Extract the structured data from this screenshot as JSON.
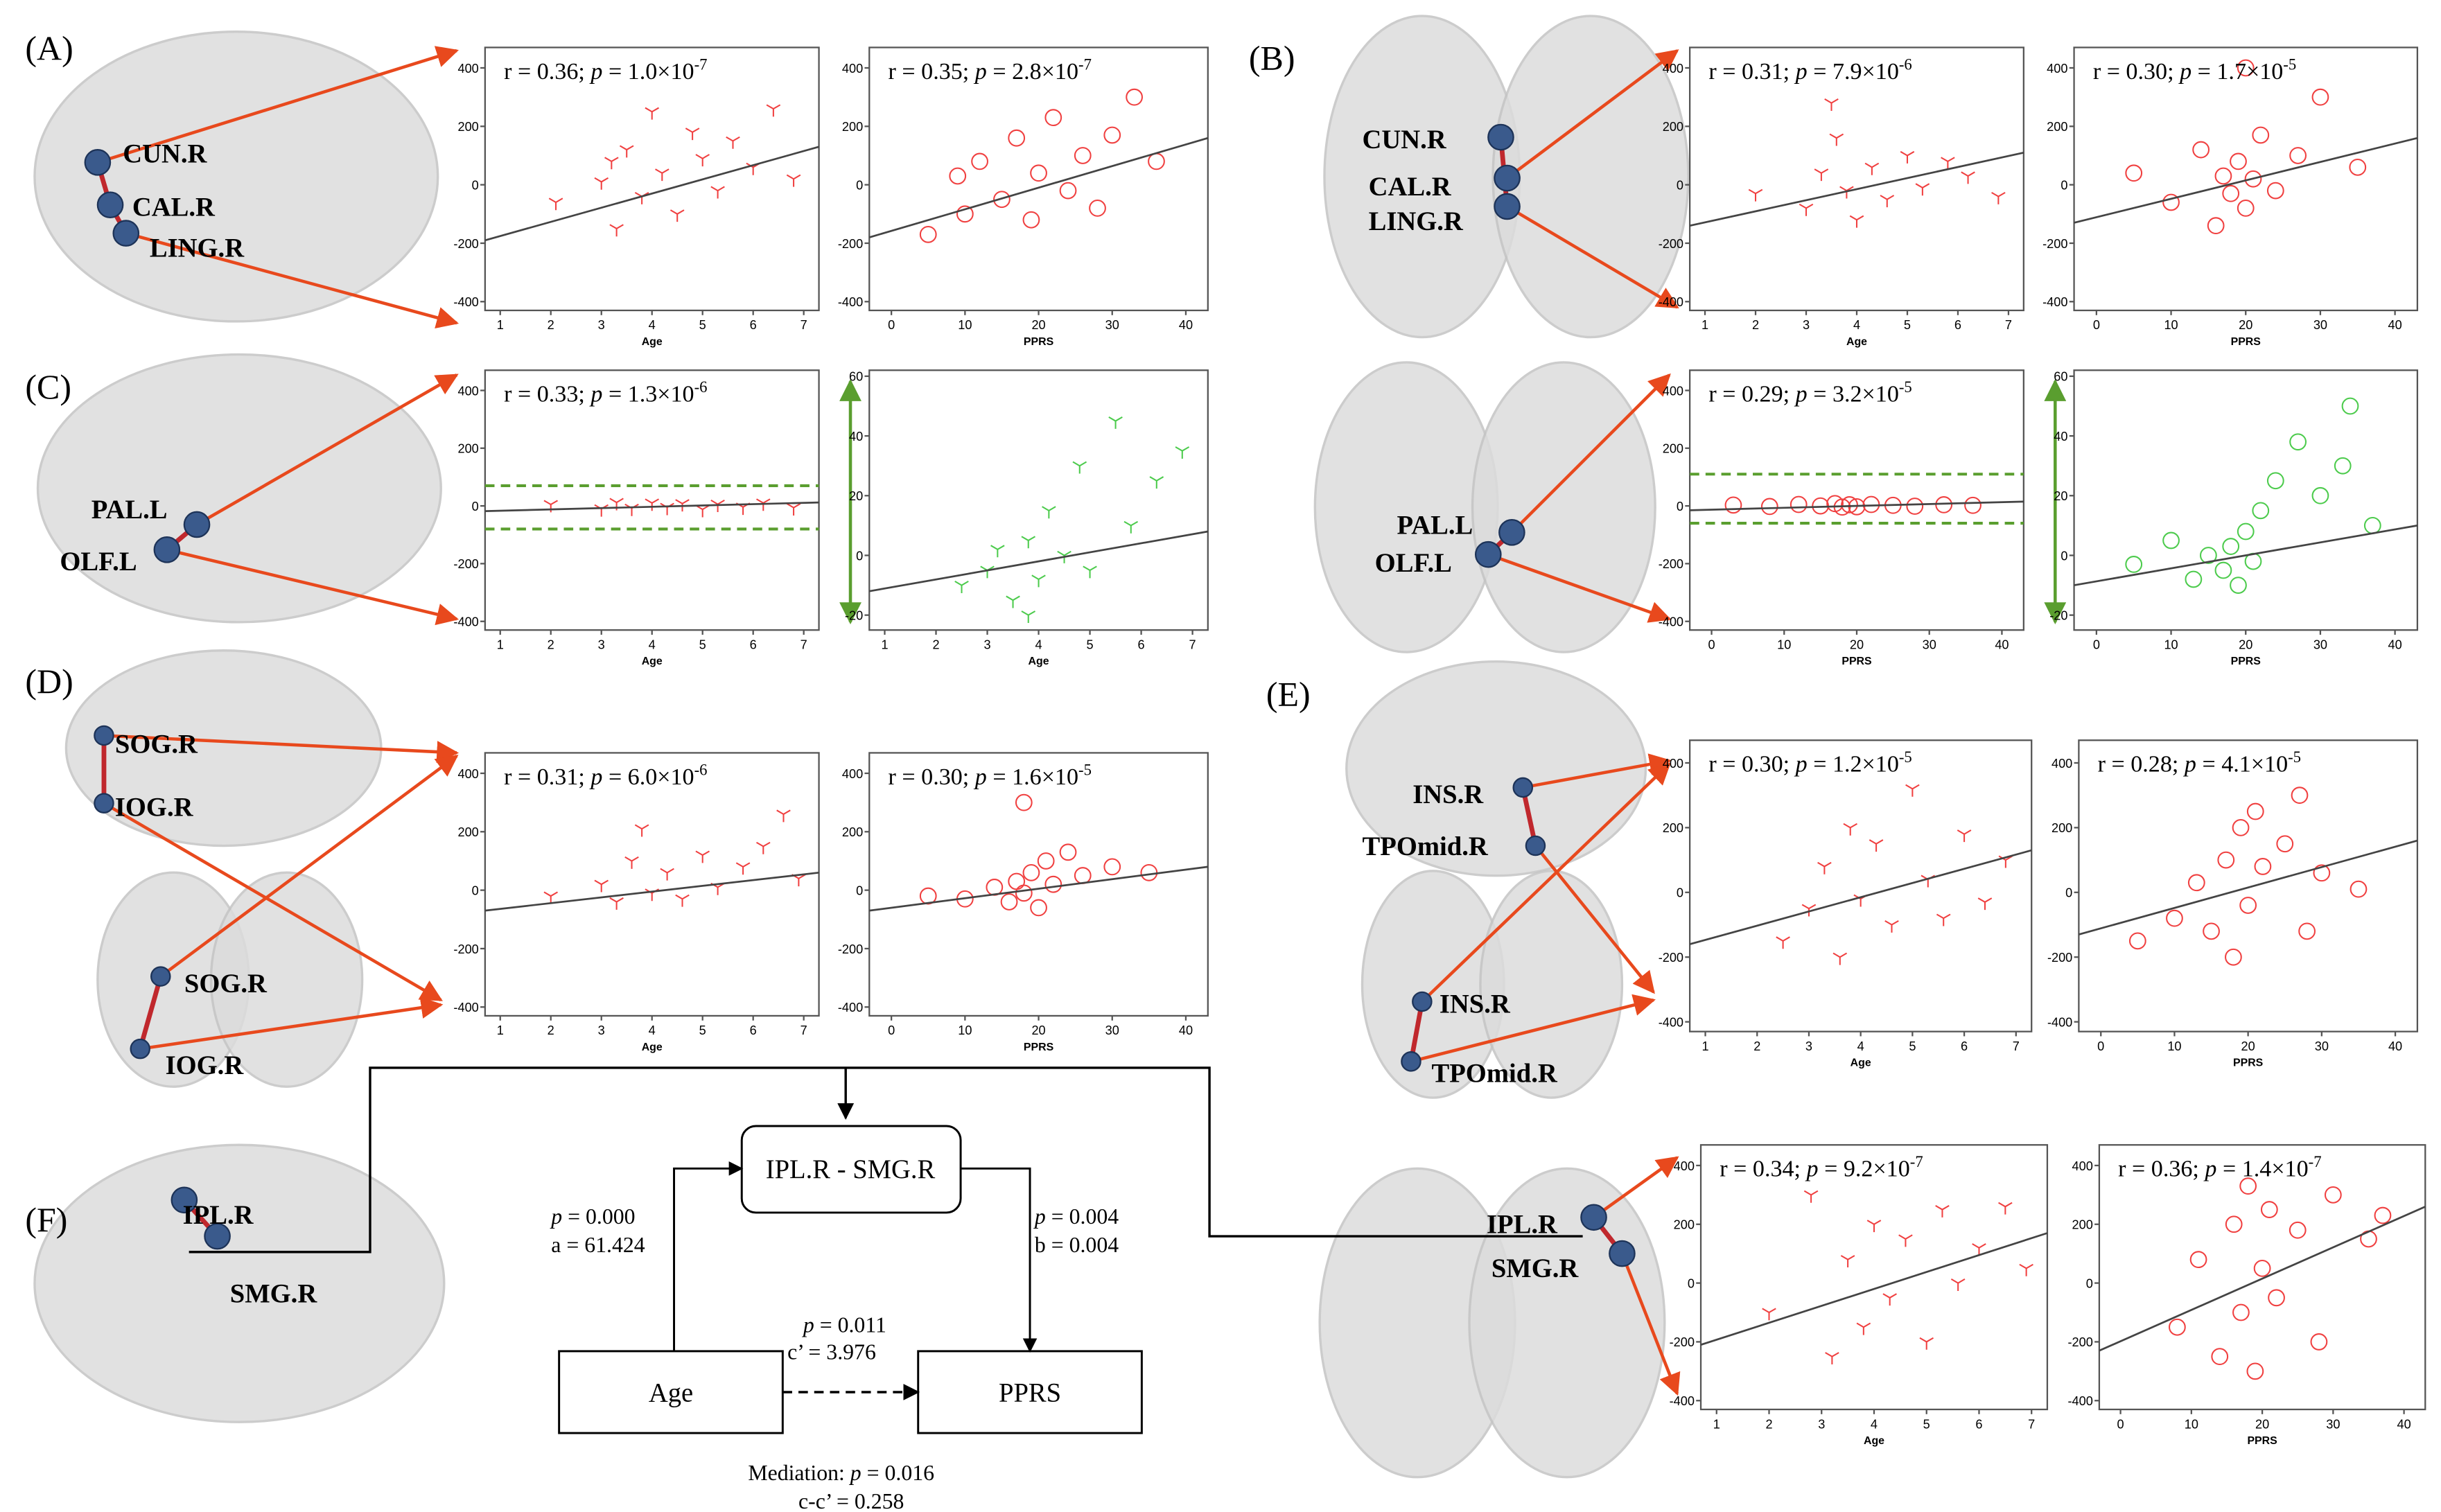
{
  "panels": [
    "(A)",
    "(B)",
    "(C)",
    "(D)",
    "(E)",
    "(F)"
  ],
  "regions": {
    "A": [
      "CUN.R",
      "CAL.R",
      "LING.R"
    ],
    "B": [
      "CUN.R",
      "CAL.R",
      "LING.R"
    ],
    "C": [
      "PAL.L",
      "OLF.L"
    ],
    "C2": [
      "PAL.L",
      "OLF.L"
    ],
    "D": [
      "SOG.R",
      "IOG.R",
      "SOG.R",
      "IOG.R"
    ],
    "E": [
      "INS.R",
      "TPOmid.R",
      "INS.R",
      "TPOmid.R"
    ],
    "F": [
      "IPL.R",
      "SMG.R"
    ],
    "F2": [
      "IPL.R",
      "SMG.R"
    ]
  },
  "mediation": {
    "mediator": "IPL.R - SMG.R",
    "x": "Age",
    "y": "PPRS",
    "a": {
      "sym": "p",
      "text": "= 0.000",
      "coef": "a = 61.424"
    },
    "b": {
      "sym": "p",
      "text": "= 0.004",
      "coef": "b = 0.004"
    },
    "c": {
      "sym": "p",
      "text": "= 0.011",
      "coef": "c’ = 3.976"
    },
    "total": {
      "lead": "Mediation:",
      "sym": "p",
      "text": "= 0.016",
      "coef": "c-c’ = 0.258"
    }
  },
  "plots": [
    {
      "xlabel": "Age",
      "xlim": [
        0.7,
        7.3
      ],
      "xticks": [
        1,
        2,
        3,
        4,
        5,
        6,
        7
      ],
      "ylim": [
        -430,
        470
      ],
      "yticks": [
        -400,
        -200,
        0,
        200,
        400
      ],
      "marker": "tri",
      "color": "#f04040",
      "annotation": {
        "r": "r = 0.36;",
        "p": "p",
        "rest": "= 1.0×10",
        "exp": "-7"
      },
      "points": [
        [
          2.1,
          -60
        ],
        [
          3,
          10
        ],
        [
          3.3,
          -150
        ],
        [
          3.5,
          120
        ],
        [
          3.8,
          -40
        ],
        [
          4,
          250
        ],
        [
          4.2,
          40
        ],
        [
          4.5,
          -100
        ],
        [
          4.8,
          180
        ],
        [
          5,
          90
        ],
        [
          5.3,
          -20
        ],
        [
          5.6,
          150
        ],
        [
          6,
          60
        ],
        [
          6.4,
          260
        ],
        [
          6.8,
          20
        ],
        [
          3.2,
          80
        ]
      ],
      "fit": [
        [
          0.7,
          -190
        ],
        [
          7.3,
          130
        ]
      ]
    },
    {
      "xlabel": "PPRS",
      "xlim": [
        -3,
        43
      ],
      "xticks": [
        0,
        10,
        20,
        30,
        40
      ],
      "ylim": [
        -430,
        470
      ],
      "yticks": [
        -400,
        -200,
        0,
        200,
        400
      ],
      "marker": "circle",
      "color": "#f04040",
      "annotation": {
        "r": "r = 0.35;",
        "p": "p",
        "rest": "= 2.8×10",
        "exp": "-7"
      },
      "points": [
        [
          5,
          -170
        ],
        [
          9,
          30
        ],
        [
          10,
          -100
        ],
        [
          12,
          80
        ],
        [
          15,
          -50
        ],
        [
          17,
          160
        ],
        [
          19,
          -120
        ],
        [
          20,
          40
        ],
        [
          22,
          230
        ],
        [
          24,
          -20
        ],
        [
          26,
          100
        ],
        [
          28,
          -80
        ],
        [
          30,
          170
        ],
        [
          33,
          300
        ],
        [
          36,
          80
        ]
      ],
      "fit": [
        [
          -3,
          -180
        ],
        [
          43,
          160
        ]
      ]
    },
    {
      "xlabel": "Age",
      "xlim": [
        0.7,
        7.3
      ],
      "xticks": [
        1,
        2,
        3,
        4,
        5,
        6,
        7
      ],
      "ylim": [
        -430,
        470
      ],
      "yticks": [
        -400,
        -200,
        0,
        200,
        400
      ],
      "marker": "tri",
      "color": "#f04040",
      "annotation": {
        "r": "r = 0.31;",
        "p": "p",
        "rest": "= 7.9×10",
        "exp": "-6"
      },
      "points": [
        [
          2,
          -30
        ],
        [
          3,
          -80
        ],
        [
          3.3,
          40
        ],
        [
          3.6,
          160
        ],
        [
          3.8,
          -20
        ],
        [
          4,
          -120
        ],
        [
          4.3,
          60
        ],
        [
          4.6,
          -50
        ],
        [
          5,
          100
        ],
        [
          5.3,
          -10
        ],
        [
          5.8,
          80
        ],
        [
          6.2,
          30
        ],
        [
          6.8,
          -40
        ],
        [
          3.5,
          280
        ]
      ],
      "fit": [
        [
          0.7,
          -140
        ],
        [
          7.3,
          110
        ]
      ]
    },
    {
      "xlabel": "PPRS",
      "xlim": [
        -3,
        43
      ],
      "xticks": [
        0,
        10,
        20,
        30,
        40
      ],
      "ylim": [
        -430,
        470
      ],
      "yticks": [
        -400,
        -200,
        0,
        200,
        400
      ],
      "marker": "circle",
      "color": "#f04040",
      "annotation": {
        "r": "r = 0.30;",
        "p": "p",
        "rest": "= 1.7×10",
        "exp": "-5"
      },
      "points": [
        [
          5,
          40
        ],
        [
          10,
          -60
        ],
        [
          14,
          120
        ],
        [
          16,
          -140
        ],
        [
          17,
          30
        ],
        [
          18,
          -30
        ],
        [
          19,
          80
        ],
        [
          20,
          -80
        ],
        [
          21,
          20
        ],
        [
          22,
          170
        ],
        [
          24,
          -20
        ],
        [
          27,
          100
        ],
        [
          30,
          300
        ],
        [
          35,
          60
        ],
        [
          20,
          400
        ]
      ],
      "fit": [
        [
          -3,
          -130
        ],
        [
          43,
          160
        ]
      ]
    },
    {
      "xlabel": "Age",
      "xlim": [
        0.7,
        7.3
      ],
      "xticks": [
        1,
        2,
        3,
        4,
        5,
        6,
        7
      ],
      "ylim": [
        -430,
        470
      ],
      "yticks": [
        -400,
        -200,
        0,
        200,
        400
      ],
      "marker": "tri",
      "color": "#f04040",
      "bands": [
        70,
        -80
      ],
      "bandcolor": "#5a9e2f",
      "annotation": {
        "r": "r = 0.33;",
        "p": "p",
        "rest": "= 1.3×10",
        "exp": "-6"
      },
      "points": [
        [
          2,
          5
        ],
        [
          3,
          -10
        ],
        [
          3.3,
          12
        ],
        [
          3.6,
          -8
        ],
        [
          4,
          10
        ],
        [
          4.3,
          -5
        ],
        [
          4.6,
          8
        ],
        [
          5,
          -12
        ],
        [
          5.3,
          6
        ],
        [
          5.8,
          -4
        ],
        [
          6.2,
          10
        ],
        [
          6.8,
          -6
        ]
      ],
      "fit": [
        [
          0.7,
          -18
        ],
        [
          7.3,
          12
        ]
      ]
    },
    {
      "xlabel": "Age",
      "xlim": [
        0.7,
        7.3
      ],
      "xticks": [
        1,
        2,
        3,
        4,
        5,
        6,
        7
      ],
      "ylim": [
        -25,
        62
      ],
      "yticks": [
        -20,
        0,
        20,
        40,
        60
      ],
      "marker": "tri",
      "color": "#4ccb4c",
      "points": [
        [
          2.5,
          -10
        ],
        [
          3,
          -5
        ],
        [
          3.2,
          2
        ],
        [
          3.5,
          -15
        ],
        [
          3.8,
          5
        ],
        [
          4,
          -8
        ],
        [
          4.2,
          15
        ],
        [
          4.5,
          0
        ],
        [
          4.8,
          30
        ],
        [
          5,
          -5
        ],
        [
          5.5,
          45
        ],
        [
          5.8,
          10
        ],
        [
          6.3,
          25
        ],
        [
          6.8,
          35
        ],
        [
          3.8,
          -20
        ]
      ],
      "fit": [
        [
          0.7,
          -12
        ],
        [
          7.3,
          8
        ]
      ]
    },
    {
      "xlabel": "PPRS",
      "xlim": [
        -3,
        43
      ],
      "xticks": [
        0,
        10,
        20,
        30,
        40
      ],
      "ylim": [
        -430,
        470
      ],
      "yticks": [
        -400,
        -200,
        0,
        200,
        400
      ],
      "marker": "circle",
      "color": "#f04040",
      "bands": [
        110,
        -60
      ],
      "bandcolor": "#5a9e2f",
      "annotation": {
        "r": "r = 0.29;",
        "p": "p",
        "rest": "= 3.2×10",
        "exp": "-5"
      },
      "points": [
        [
          3,
          3
        ],
        [
          8,
          -2
        ],
        [
          12,
          5
        ],
        [
          15,
          0
        ],
        [
          17,
          8
        ],
        [
          18,
          -4
        ],
        [
          19,
          4
        ],
        [
          20,
          -3
        ],
        [
          22,
          5
        ],
        [
          25,
          2
        ],
        [
          28,
          -1
        ],
        [
          32,
          4
        ],
        [
          36,
          2
        ]
      ],
      "fit": [
        [
          -3,
          -15
        ],
        [
          43,
          15
        ]
      ]
    },
    {
      "xlabel": "PPRS",
      "xlim": [
        -3,
        43
      ],
      "xticks": [
        0,
        10,
        20,
        30,
        40
      ],
      "ylim": [
        -25,
        62
      ],
      "yticks": [
        -20,
        0,
        20,
        40,
        60
      ],
      "marker": "circle",
      "color": "#4ccb4c",
      "points": [
        [
          5,
          -3
        ],
        [
          10,
          5
        ],
        [
          13,
          -8
        ],
        [
          15,
          0
        ],
        [
          17,
          -5
        ],
        [
          18,
          3
        ],
        [
          19,
          -10
        ],
        [
          20,
          8
        ],
        [
          21,
          -2
        ],
        [
          22,
          15
        ],
        [
          24,
          25
        ],
        [
          27,
          38
        ],
        [
          30,
          20
        ],
        [
          33,
          30
        ],
        [
          34,
          50
        ],
        [
          37,
          10
        ]
      ],
      "fit": [
        [
          -3,
          -10
        ],
        [
          43,
          10
        ]
      ]
    },
    {
      "xlabel": "Age",
      "xlim": [
        0.7,
        7.3
      ],
      "xticks": [
        1,
        2,
        3,
        4,
        5,
        6,
        7
      ],
      "ylim": [
        -430,
        470
      ],
      "yticks": [
        -400,
        -200,
        0,
        200,
        400
      ],
      "marker": "tri",
      "color": "#f04040",
      "annotation": {
        "r": "r = 0.31;",
        "p": "p",
        "rest": "= 6.0×10",
        "exp": "-6"
      },
      "points": [
        [
          2,
          -20
        ],
        [
          3,
          20
        ],
        [
          3.3,
          -40
        ],
        [
          3.6,
          100
        ],
        [
          4,
          -10
        ],
        [
          4.3,
          60
        ],
        [
          4.6,
          -30
        ],
        [
          5,
          120
        ],
        [
          5.3,
          10
        ],
        [
          5.8,
          80
        ],
        [
          6.2,
          150
        ],
        [
          6.6,
          260
        ],
        [
          6.9,
          40
        ],
        [
          3.8,
          210
        ]
      ],
      "fit": [
        [
          0.7,
          -70
        ],
        [
          7.3,
          60
        ]
      ]
    },
    {
      "xlabel": "PPRS",
      "xlim": [
        -3,
        43
      ],
      "xticks": [
        0,
        10,
        20,
        30,
        40
      ],
      "ylim": [
        -430,
        470
      ],
      "yticks": [
        -400,
        -200,
        0,
        200,
        400
      ],
      "marker": "circle",
      "color": "#f04040",
      "annotation": {
        "r": "r = 0.30;",
        "p": "p",
        "rest": "= 1.6×10",
        "exp": "-5"
      },
      "points": [
        [
          5,
          -20
        ],
        [
          10,
          -30
        ],
        [
          14,
          10
        ],
        [
          16,
          -40
        ],
        [
          17,
          30
        ],
        [
          18,
          -10
        ],
        [
          19,
          60
        ],
        [
          20,
          -60
        ],
        [
          21,
          100
        ],
        [
          22,
          20
        ],
        [
          24,
          130
        ],
        [
          26,
          50
        ],
        [
          30,
          80
        ],
        [
          35,
          60
        ],
        [
          18,
          300
        ]
      ],
      "fit": [
        [
          -3,
          -70
        ],
        [
          43,
          80
        ]
      ]
    },
    {
      "xlabel": "Age",
      "xlim": [
        0.7,
        7.3
      ],
      "xticks": [
        1,
        2,
        3,
        4,
        5,
        6,
        7
      ],
      "ylim": [
        -430,
        470
      ],
      "yticks": [
        -400,
        -200,
        0,
        200,
        400
      ],
      "marker": "tri",
      "color": "#f04040",
      "annotation": {
        "r": "r = 0.30;",
        "p": "p",
        "rest": "= 1.2×10",
        "exp": "-5"
      },
      "points": [
        [
          2.5,
          -150
        ],
        [
          3,
          -50
        ],
        [
          3.3,
          80
        ],
        [
          3.6,
          -200
        ],
        [
          3.8,
          200
        ],
        [
          4,
          -20
        ],
        [
          4.3,
          150
        ],
        [
          4.6,
          -100
        ],
        [
          5,
          320
        ],
        [
          5.3,
          40
        ],
        [
          5.6,
          -80
        ],
        [
          6,
          180
        ],
        [
          6.4,
          -30
        ],
        [
          6.8,
          100
        ]
      ],
      "fit": [
        [
          0.7,
          -160
        ],
        [
          7.3,
          130
        ]
      ]
    },
    {
      "xlabel": "PPRS",
      "xlim": [
        -3,
        43
      ],
      "xticks": [
        0,
        10,
        20,
        30,
        40
      ],
      "ylim": [
        -430,
        470
      ],
      "yticks": [
        -400,
        -200,
        0,
        200,
        400
      ],
      "marker": "circle",
      "color": "#f04040",
      "annotation": {
        "r": "r = 0.28;",
        "p": "p",
        "rest": "= 4.1×10",
        "exp": "-5"
      },
      "points": [
        [
          5,
          -150
        ],
        [
          10,
          -80
        ],
        [
          13,
          30
        ],
        [
          15,
          -120
        ],
        [
          17,
          100
        ],
        [
          18,
          -200
        ],
        [
          19,
          200
        ],
        [
          20,
          -40
        ],
        [
          21,
          250
        ],
        [
          22,
          80
        ],
        [
          25,
          150
        ],
        [
          28,
          -120
        ],
        [
          30,
          60
        ],
        [
          35,
          10
        ],
        [
          27,
          300
        ]
      ],
      "fit": [
        [
          -3,
          -130
        ],
        [
          43,
          160
        ]
      ]
    },
    {
      "xlabel": "Age",
      "xlim": [
        0.7,
        7.3
      ],
      "xticks": [
        1,
        2,
        3,
        4,
        5,
        6,
        7
      ],
      "ylim": [
        -430,
        470
      ],
      "yticks": [
        -400,
        -200,
        0,
        200,
        400
      ],
      "marker": "tri",
      "color": "#f04040",
      "annotation": {
        "r": "r = 0.34;",
        "p": "p",
        "rest": "= 9.2×10",
        "exp": "-7"
      },
      "points": [
        [
          2,
          -100
        ],
        [
          2.8,
          300
        ],
        [
          3.2,
          -250
        ],
        [
          3.5,
          80
        ],
        [
          3.8,
          -150
        ],
        [
          4,
          200
        ],
        [
          4.3,
          -50
        ],
        [
          4.6,
          150
        ],
        [
          5,
          -200
        ],
        [
          5.3,
          250
        ],
        [
          5.6,
          0
        ],
        [
          6,
          120
        ],
        [
          6.5,
          260
        ],
        [
          6.9,
          50
        ]
      ],
      "fit": [
        [
          0.7,
          -210
        ],
        [
          7.3,
          170
        ]
      ]
    },
    {
      "xlabel": "PPRS",
      "xlim": [
        -3,
        43
      ],
      "xticks": [
        0,
        10,
        20,
        30,
        40
      ],
      "ylim": [
        -430,
        470
      ],
      "yticks": [
        -400,
        -200,
        0,
        200,
        400
      ],
      "marker": "circle",
      "color": "#f04040",
      "annotation": {
        "r": "r = 0.36;",
        "p": "p",
        "rest": "= 1.4×10",
        "exp": "-7"
      },
      "points": [
        [
          8,
          -150
        ],
        [
          11,
          80
        ],
        [
          14,
          -250
        ],
        [
          16,
          200
        ],
        [
          17,
          -100
        ],
        [
          18,
          330
        ],
        [
          19,
          -300
        ],
        [
          20,
          50
        ],
        [
          21,
          250
        ],
        [
          22,
          -50
        ],
        [
          25,
          180
        ],
        [
          28,
          -200
        ],
        [
          30,
          300
        ],
        [
          35,
          150
        ],
        [
          37,
          230
        ]
      ],
      "fit": [
        [
          -3,
          -230
        ],
        [
          43,
          260
        ]
      ]
    }
  ]
}
